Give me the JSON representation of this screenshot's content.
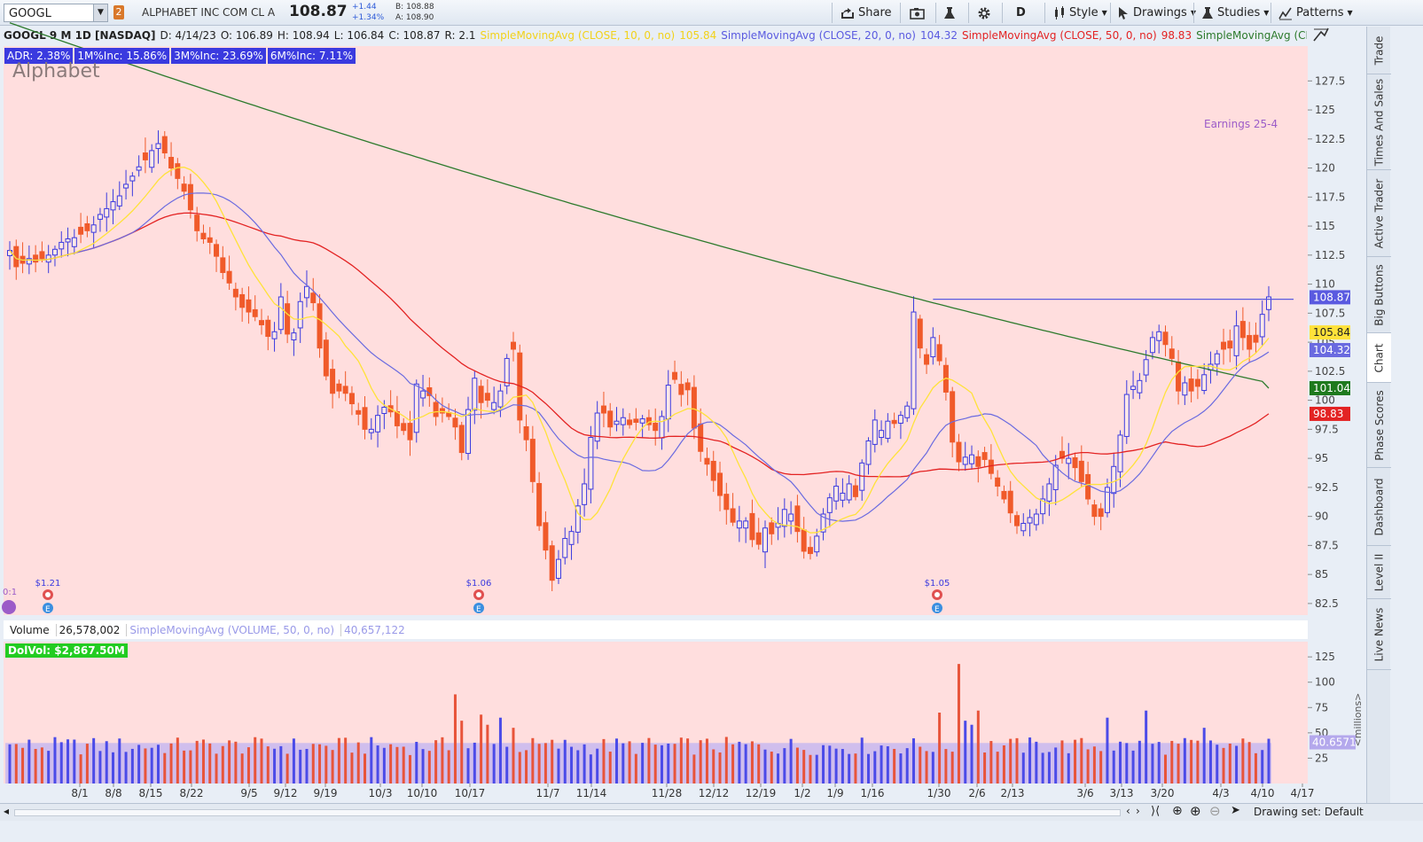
{
  "toolbar": {
    "symbol": "GOOGL",
    "link_badge": "2",
    "company": "ALPHABET INC COM CL A",
    "last": "108.87",
    "change": "+1.44",
    "change_pct": "+1.34%",
    "bid": "B: 108.88",
    "ask": "A: 108.90",
    "share": "Share",
    "period": "D",
    "style": "Style",
    "drawings": "Drawings",
    "studies": "Studies",
    "patterns": "Patterns"
  },
  "header": {
    "title": "GOOGL 9 M 1D [NASDAQ]",
    "date": "D: 4/14/23",
    "open": "O: 106.89",
    "high": "H: 108.94",
    "low": "L: 106.84",
    "close": "C: 108.87",
    "range": "R: 2.1",
    "sma10_label": "SimpleMovingAvg (CLOSE, 10, 0, no)",
    "sma10_val": "105.84",
    "sma20_label": "SimpleMovingAvg (CLOSE, 20, 0, no)",
    "sma20_val": "104.32",
    "sma50_label": "SimpleMovingAvg (CLOSE, 50, 0, no)",
    "sma50_val": "98.83",
    "sma200_label": "SimpleMovingAvg (CLOSE..."
  },
  "chips": [
    "ADR: 2.38%",
    "1M%Inc: 15.86%",
    "3M%Inc: 23.69%",
    "6M%Inc: 7.11%"
  ],
  "watermark": "Alphabet",
  "earnings_label": "Earnings 25-4",
  "dividends": [
    {
      "label": "$1.21",
      "x": "8/11"
    },
    {
      "label": "$1.06",
      "x": "10/25"
    },
    {
      "label": "$1.05",
      "x": "2/2"
    }
  ],
  "split_label": "0:1",
  "volume_header": {
    "label": "Volume",
    "value": "26,578,002",
    "sma_label": "SimpleMovingAvg (VOLUME, 50, 0, no)",
    "sma_value": "40,657,122",
    "dolvol": "DolVol: $2,867.50M",
    "units": "<millions>",
    "sma_tag": "40.6571"
  },
  "side_tabs": [
    "Trade",
    "Times And Sales",
    "Active Trader",
    "Big Buttons",
    "Chart",
    "Phase Scores",
    "Dashboard",
    "Level II",
    "Live News"
  ],
  "bottom": {
    "drawing_set": "Drawing set: Default"
  },
  "colors": {
    "bull": "#3a3adf",
    "bear": "#f05a2a",
    "sma10": "#ffe23a",
    "sma20": "#6a6ae0",
    "sma50": "#e32323",
    "sma200": "#2c7a2c",
    "bg": "#ffdede"
  },
  "chart_data": {
    "type": "candlestick",
    "price_axis": {
      "ticks": [
        82.5,
        85,
        87.5,
        90,
        92.5,
        95,
        97.5,
        100,
        102.5,
        105,
        107.5,
        110,
        112.5,
        115,
        117.5,
        120,
        122.5,
        125,
        127.5
      ],
      "ylim": [
        81.5,
        130.5
      ]
    },
    "volume_axis": {
      "ticks": [
        25,
        50,
        75,
        100,
        125
      ],
      "ylim": [
        0,
        140
      ],
      "unit": "millions"
    },
    "x_labels": [
      "8/1",
      "8/8",
      "8/15",
      "8/22",
      "9/5",
      "9/12",
      "9/19",
      "10/3",
      "10/10",
      "10/17",
      "11/7",
      "11/14",
      "11/28",
      "12/12",
      "12/19",
      "1/2",
      "1/9",
      "1/16",
      "1/30",
      "2/6",
      "2/13",
      "3/6",
      "3/13",
      "3/20",
      "4/3",
      "4/10",
      "4/17"
    ],
    "resistance_line": 108.7,
    "last_values": {
      "close": 108.87,
      "sma10": 105.84,
      "sma20": 104.32,
      "sma200": 101.04,
      "sma50": 98.83
    },
    "closes": [
      112.9,
      111.5,
      111.8,
      112.2,
      111.9,
      112.2,
      112.5,
      113.0,
      113.6,
      113.9,
      114.0,
      114.3,
      114.6,
      115.1,
      116.0,
      116.5,
      117.1,
      117.6,
      118.6,
      119.3,
      120.1,
      120.7,
      121.5,
      122.1,
      121.3,
      120.0,
      119.1,
      118.0,
      116.4,
      114.6,
      113.9,
      113.6,
      112.4,
      111.0,
      110.1,
      108.9,
      108.0,
      107.6,
      107.2,
      106.5,
      105.5,
      105.9,
      108.9,
      105.7,
      105.8,
      108.5,
      109.8,
      108.4,
      104.5,
      102.1,
      100.6,
      100.8,
      100.6,
      99.7,
      98.8,
      97.5,
      97.5,
      98.7,
      99.4,
      99.0,
      97.8,
      97.4,
      96.6,
      101.4,
      100.8,
      100.4,
      98.6,
      98.9,
      98.6,
      97.7,
      95.5,
      99.2,
      101.9,
      99.8,
      100.0,
      99.8,
      100.8,
      103.6,
      104.4,
      98.3,
      96.6,
      93.0,
      89.2,
      87.1,
      84.5,
      86.3,
      88.1,
      88.7,
      90.9,
      92.8,
      96.8,
      98.9,
      98.9,
      97.7,
      98.2,
      98.5,
      97.9,
      98.1,
      98.4,
      97.9,
      97.4,
      98.6,
      101.3,
      101.8,
      100.5,
      100.9,
      97.6,
      95.6,
      94.5,
      93.1,
      91.8,
      90.6,
      89.5,
      89.6,
      89.6,
      88.0,
      87.6,
      89.0,
      88.5,
      89.4,
      90.6,
      90.2,
      88.7,
      87.0,
      86.8,
      88.3,
      90.2,
      91.6,
      92.6,
      92.0,
      92.8,
      91.7,
      94.6,
      96.5,
      98.3,
      97.4,
      98.2,
      98.0,
      98.7,
      99.5,
      107.6,
      104.5,
      103.1,
      105.4,
      103.4,
      100.7,
      96.4,
      94.7,
      95.1,
      95.3,
      94.3,
      94.9,
      93.7,
      92.6,
      91.5,
      90.3,
      89.2,
      89.4,
      89.9,
      90.2,
      91.5,
      92.8,
      94.4,
      95.0,
      95.0,
      94.2,
      93.0,
      91.5,
      90.0,
      90.0,
      92.5,
      94.3,
      97.0,
      100.5,
      101.2,
      101.7,
      103.5,
      105.4,
      105.9,
      104.8,
      103.6,
      100.8,
      101.5,
      100.8,
      101.2,
      102.2,
      103.1,
      104.0,
      104.4,
      104.5,
      106.4,
      105.4,
      104.4,
      105.0,
      107.4,
      108.9
    ]
  }
}
